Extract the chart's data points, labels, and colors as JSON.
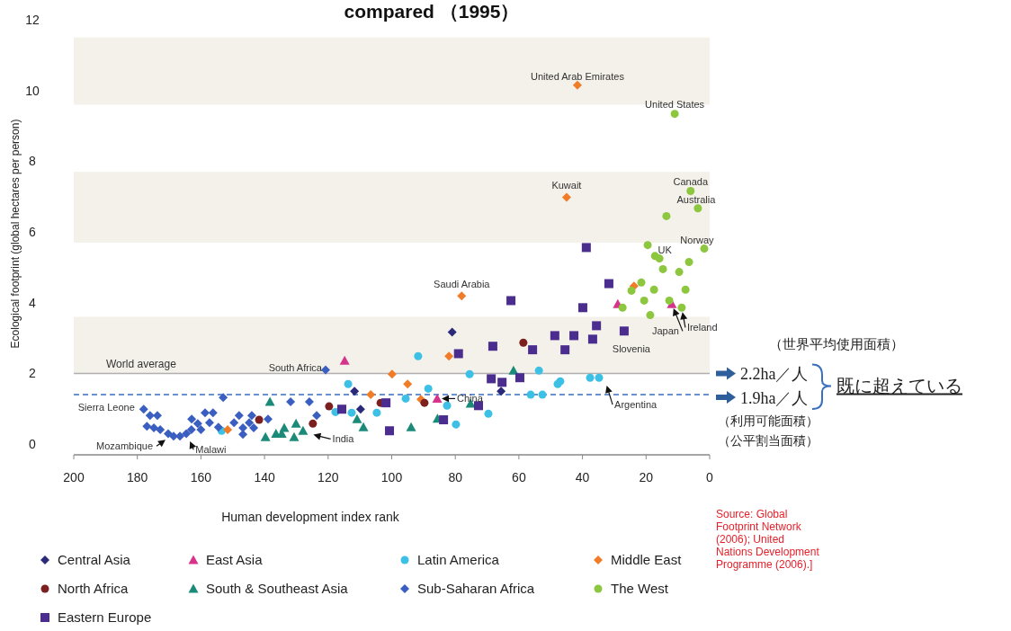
{
  "chart_data": {
    "type": "scatter",
    "title": "compared （1995）",
    "xlabel": "Human development index rank",
    "ylabel": "Ecological footprint (global hectares per person)",
    "xlim": [
      200,
      0
    ],
    "ylim": [
      -0.3,
      12
    ],
    "xticks": [
      200,
      180,
      160,
      140,
      120,
      100,
      80,
      60,
      40,
      20,
      0
    ],
    "yticks": [
      0,
      2,
      4,
      6,
      8,
      10,
      12
    ],
    "legend": "bottom",
    "bands": [
      {
        "axis": "y",
        "from": 9.6,
        "to": 11.5,
        "color": "#f4f1ea"
      },
      {
        "axis": "y",
        "from": 5.7,
        "to": 7.7,
        "color": "#f4f1ea"
      },
      {
        "axis": "y",
        "from": 2.0,
        "to": 3.6,
        "color": "#f4f1ea"
      }
    ],
    "ref_lines": [
      {
        "axis": "y",
        "value": 2.0,
        "label": "World average",
        "color": "#b0b0b0",
        "line_style": "solid"
      },
      {
        "axis": "y",
        "value": 1.4,
        "color": "#3a6fc0",
        "line_style": "dashed"
      }
    ],
    "series": [
      {
        "name": "Central Asia",
        "color": "#2b2a7a",
        "marker": "diamond",
        "x": [
          81,
          111.7,
          109.8,
          65.6
        ],
        "values": [
          3.17,
          1.5,
          0.99,
          1.5
        ]
      },
      {
        "name": "East Asia",
        "color": "#d6338a",
        "marker": "triangle",
        "x": [
          114.8,
          85.7,
          28.9,
          11.9
        ],
        "values": [
          2.36,
          1.29,
          3.96,
          3.96
        ]
      },
      {
        "name": "Latin America",
        "color": "#3cc0e6",
        "marker": "circle",
        "x": [
          91.7,
          113.7,
          117.7,
          112.6,
          104.7,
          95.6,
          88.5,
          82.6,
          79.8,
          69.6,
          75.5,
          153.5,
          53.7,
          37.6,
          34.8,
          47,
          56.3,
          52.6,
          47.8
        ],
        "values": [
          2.49,
          1.7,
          0.91,
          0.89,
          0.89,
          1.29,
          1.57,
          1.09,
          0.56,
          0.86,
          1.98,
          0.38,
          2.08,
          1.88,
          1.88,
          1.78,
          1.4,
          1.4,
          1.7
        ]
      },
      {
        "name": "Middle East",
        "color": "#f07c28",
        "marker": "diamond",
        "x": [
          41.6,
          45,
          78,
          23.8,
          82,
          99.9,
          95,
          106.6,
          90.8,
          151.6
        ],
        "values": [
          10.15,
          6.98,
          4.19,
          4.47,
          2.49,
          1.98,
          1.7,
          1.4,
          1.27,
          0.41
        ]
      },
      {
        "name": "North Africa",
        "color": "#7b1f1f",
        "marker": "circle",
        "x": [
          141.7,
          119.7,
          124.8,
          103.5,
          89.7,
          58.6
        ],
        "values": [
          0.69,
          1.07,
          0.58,
          1.17,
          1.17,
          2.87
        ]
      },
      {
        "name": "South & Southeast Asia",
        "color": "#1b8a78",
        "marker": "triangle",
        "x": [
          138.3,
          139.7,
          136.4,
          134.6,
          133.8,
          130.1,
          127.9,
          130.7,
          110.9,
          108.9,
          93.9,
          75.2,
          85.6,
          61.7
        ],
        "values": [
          1.2,
          0.2,
          0.3,
          0.3,
          0.46,
          0.58,
          0.38,
          0.2,
          0.71,
          0.48,
          0.48,
          1.15,
          0.72,
          2.08
        ]
      },
      {
        "name": "Sub-Saharan Africa",
        "color": "#3b5fc0",
        "marker": "diamond",
        "x": [
          178,
          176,
          173.7,
          177,
          174.8,
          172.8,
          170.3,
          168.6,
          166.6,
          164.6,
          163,
          162.9,
          161,
          160,
          158.7,
          156.2,
          157.3,
          154.5,
          153,
          149.6,
          148,
          146.8,
          144.8,
          144,
          146.8,
          143.4,
          138.9,
          120.8,
          131.8,
          125.9,
          123.6
        ],
        "values": [
          0.99,
          0.81,
          0.81,
          0.51,
          0.46,
          0.41,
          0.3,
          0.23,
          0.23,
          0.3,
          0.41,
          0.71,
          0.58,
          0.41,
          0.89,
          0.89,
          0.61,
          0.48,
          1.32,
          0.61,
          0.81,
          0.46,
          0.61,
          0.81,
          0.28,
          0.46,
          0.71,
          2.1,
          1.2,
          1.2,
          0.81
        ]
      },
      {
        "name": "The West",
        "color": "#8dc63f",
        "marker": "circle",
        "x": [
          11,
          6,
          3.7,
          13.6,
          1.7,
          19.5,
          17.2,
          15.8,
          6.5,
          14.7,
          9.6,
          21.5,
          24.6,
          17.5,
          7.6,
          20.6,
          12.7,
          27.4,
          8.8,
          18.7
        ],
        "values": [
          9.34,
          7.16,
          6.67,
          6.45,
          5.53,
          5.63,
          5.32,
          5.25,
          5.15,
          4.95,
          4.87,
          4.57,
          4.34,
          4.37,
          4.37,
          4.06,
          4.06,
          3.86,
          3.86,
          3.65
        ]
      },
      {
        "name": "Eastern Europe",
        "color": "#4b2d8f",
        "marker": "square",
        "x": [
          79,
          68.2,
          68.7,
          65.3,
          101.8,
          115.7,
          72.7,
          83.7,
          100.7,
          38.8,
          31.7,
          62.5,
          39.9,
          35.6,
          26.9,
          48.7,
          42.7,
          36.8,
          55.7,
          45.5,
          59.7
        ],
        "values": [
          2.56,
          2.77,
          1.85,
          1.75,
          1.17,
          0.99,
          1.09,
          0.69,
          0.38,
          5.56,
          4.54,
          4.06,
          3.86,
          3.35,
          3.2,
          3.07,
          3.07,
          2.97,
          2.67,
          2.67,
          1.88
        ]
      }
    ],
    "annotations": [
      {
        "text": "United Arab Emirates",
        "x": 41.6,
        "y": 10.15
      },
      {
        "text": "United States",
        "x": 11,
        "y": 9.34
      },
      {
        "text": "Kuwait",
        "x": 45,
        "y": 6.98
      },
      {
        "text": "Canada",
        "x": 6,
        "y": 7.16
      },
      {
        "text": "Australia",
        "x": 3.7,
        "y": 6.67
      },
      {
        "text": "Norway",
        "x": 1.7,
        "y": 5.53
      },
      {
        "text": "UK",
        "x": 15.8,
        "y": 5.25
      },
      {
        "text": "Saudi Arabia",
        "x": 78,
        "y": 4.19
      },
      {
        "text": "South Africa",
        "x": 120.8,
        "y": 2.1
      },
      {
        "text": "Slovenia",
        "x": 26.9,
        "y": 3.2
      },
      {
        "text": "Japan",
        "x": 11.9,
        "y": 3.96
      },
      {
        "text": "Ireland",
        "x": 8.8,
        "y": 3.86
      },
      {
        "text": "China",
        "x": 85.7,
        "y": 1.29
      },
      {
        "text": "Argentina",
        "x": 32.8,
        "y": 1.78
      },
      {
        "text": "India",
        "x": 126,
        "y": 0.3
      },
      {
        "text": "Sierra Leone",
        "x": 178,
        "y": 0.99
      },
      {
        "text": "Mozambique",
        "x": 170,
        "y": 0.2
      },
      {
        "text": "Malawi",
        "x": 164,
        "y": 0.2
      },
      "Source: Global Footprint Network (2006); United Nations Development Programme (2006).]",
      "（世界平均使用面積）",
      "2.2ha／人",
      "1.9ha／人",
      "既に超えている",
      "（利用可能面積）",
      "（公平割当面積）"
    ]
  }
}
